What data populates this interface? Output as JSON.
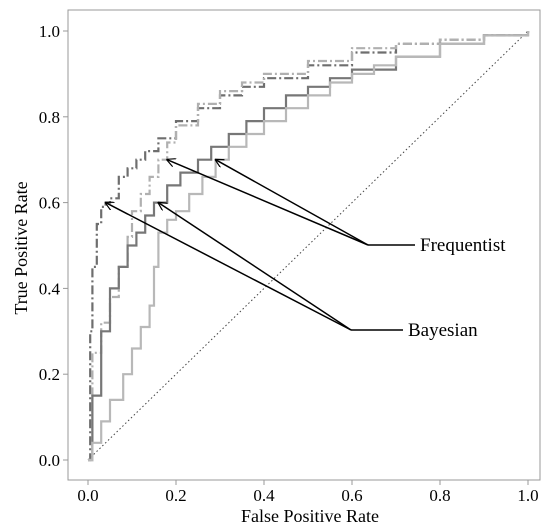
{
  "chart_data": {
    "type": "line",
    "xlabel": "False Positive Rate",
    "ylabel": "True Positive Rate",
    "xlim": [
      0.0,
      1.0
    ],
    "ylim": [
      0.0,
      1.0
    ],
    "x_ticks": [
      "0.0",
      "0.2",
      "0.4",
      "0.6",
      "0.8",
      "1.0"
    ],
    "y_ticks": [
      "0.0",
      "0.2",
      "0.4",
      "0.6",
      "0.8",
      "1.0"
    ],
    "grid": false,
    "diagonal_reference": {
      "x": [
        0,
        1
      ],
      "y": [
        0,
        1
      ],
      "style": "dotted",
      "color": "#444444"
    },
    "series": [
      {
        "style": "dash-dot",
        "color": "#6e6e6e",
        "x": [
          0,
          0.005,
          0.01,
          0.02,
          0.03,
          0.04,
          0.05,
          0.07,
          0.09,
          0.11,
          0.13,
          0.16,
          0.2,
          0.25,
          0.3,
          0.35,
          0.4,
          0.5,
          0.6,
          0.7,
          0.8,
          0.9,
          1.0
        ],
        "y": [
          0,
          0.3,
          0.45,
          0.55,
          0.59,
          0.6,
          0.61,
          0.66,
          0.68,
          0.7,
          0.72,
          0.75,
          0.79,
          0.82,
          0.85,
          0.87,
          0.89,
          0.92,
          0.95,
          0.97,
          0.98,
          0.99,
          1.0
        ]
      },
      {
        "style": "dash-dot",
        "color": "#b0b0b0",
        "x": [
          0,
          0.01,
          0.03,
          0.05,
          0.07,
          0.09,
          0.1,
          0.12,
          0.14,
          0.16,
          0.18,
          0.2,
          0.25,
          0.3,
          0.35,
          0.4,
          0.5,
          0.6,
          0.7,
          0.8,
          0.9,
          1.0
        ],
        "y": [
          0,
          0.25,
          0.32,
          0.38,
          0.45,
          0.52,
          0.58,
          0.62,
          0.66,
          0.7,
          0.74,
          0.78,
          0.83,
          0.86,
          0.88,
          0.9,
          0.93,
          0.96,
          0.97,
          0.98,
          0.99,
          1.0
        ]
      },
      {
        "style": "solid",
        "color": "#777777",
        "x": [
          0,
          0.01,
          0.03,
          0.05,
          0.07,
          0.09,
          0.11,
          0.13,
          0.15,
          0.18,
          0.21,
          0.25,
          0.28,
          0.32,
          0.36,
          0.4,
          0.45,
          0.5,
          0.55,
          0.6,
          0.7,
          0.8,
          0.9,
          1.0
        ],
        "y": [
          0,
          0.15,
          0.3,
          0.4,
          0.45,
          0.5,
          0.53,
          0.57,
          0.6,
          0.64,
          0.67,
          0.7,
          0.73,
          0.76,
          0.79,
          0.82,
          0.85,
          0.87,
          0.89,
          0.91,
          0.94,
          0.97,
          0.99,
          1.0
        ]
      },
      {
        "style": "solid",
        "color": "#b8b8b8",
        "x": [
          0,
          0.01,
          0.03,
          0.05,
          0.08,
          0.1,
          0.12,
          0.14,
          0.15,
          0.16,
          0.18,
          0.2,
          0.23,
          0.26,
          0.29,
          0.32,
          0.36,
          0.4,
          0.45,
          0.5,
          0.55,
          0.6,
          0.65,
          0.7,
          0.8,
          0.9,
          1.0
        ],
        "y": [
          0,
          0.04,
          0.09,
          0.14,
          0.2,
          0.26,
          0.31,
          0.36,
          0.45,
          0.53,
          0.56,
          0.58,
          0.62,
          0.66,
          0.7,
          0.73,
          0.76,
          0.79,
          0.82,
          0.85,
          0.88,
          0.9,
          0.92,
          0.94,
          0.97,
          0.99,
          1.0
        ]
      }
    ],
    "annotations": [
      {
        "text": "Frequentist",
        "targets": [
          [
            0.18,
            0.7
          ],
          [
            0.29,
            0.7
          ]
        ]
      },
      {
        "text": "Bayesian",
        "targets": [
          [
            0.04,
            0.6
          ],
          [
            0.16,
            0.6
          ]
        ]
      }
    ]
  }
}
